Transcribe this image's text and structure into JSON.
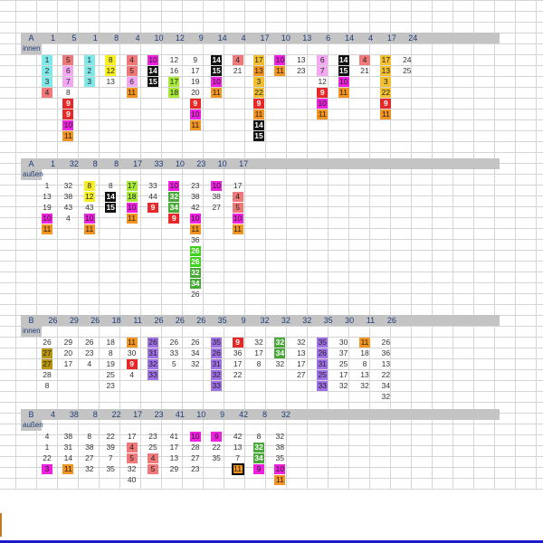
{
  "colors": {
    "1": "#7fe9e9",
    "2": "#7fe9e9",
    "3": "#7fe9e9",
    "4": "#f07878",
    "5": "#f07878",
    "6": "#f4a8f4",
    "7": "#f4a8f4",
    "8": "#f8f020",
    "12": "#f8f020",
    "9": "#e82828",
    "10": "#f020e0",
    "11": "#f49420",
    "14": "#111111",
    "15": "#111111",
    "17": "#a8e838",
    "18": "#a8e838",
    "22": "#f4c030",
    "26": "#40d020",
    "27": "#b8960c",
    "31": "#a070e8",
    "33": "#a070e8",
    "35": "#a070e8",
    "32": "#48a838",
    "34": "#48a838"
  },
  "sections": [
    {
      "title": "A",
      "subtitle": "innen",
      "headers": [
        "1",
        "5",
        "1",
        "8",
        "4",
        "10",
        "12",
        "9",
        "14",
        "4",
        "17",
        "10",
        "13",
        "6",
        "14",
        "4",
        "17",
        "24"
      ],
      "columns": [
        [
          {
            "v": "1",
            "c": "1"
          },
          {
            "v": "2",
            "c": "2"
          },
          {
            "v": "3",
            "c": "3"
          },
          {
            "v": "4",
            "c": "4"
          }
        ],
        [
          {
            "v": "5",
            "c": "5"
          },
          {
            "v": "6",
            "c": "6"
          },
          {
            "v": "7",
            "c": "7"
          },
          {
            "v": "8"
          },
          {
            "v": "9",
            "c": "9"
          },
          {
            "v": "9",
            "c": "9"
          },
          {
            "v": "10",
            "c": "10"
          },
          {
            "v": "11",
            "c": "11"
          }
        ],
        [
          {
            "v": "1",
            "c": "1"
          },
          {
            "v": "2",
            "c": "2"
          },
          {
            "v": "3",
            "c": "3"
          }
        ],
        [
          {
            "v": "8",
            "c": "8"
          },
          {
            "v": "12",
            "c": "12"
          },
          {
            "v": "13"
          }
        ],
        [
          {
            "v": "4",
            "c": "4"
          },
          {
            "v": "5",
            "c": "5"
          },
          {
            "v": "6",
            "c": "6"
          },
          {
            "v": "11",
            "c": "11"
          }
        ],
        [
          {
            "v": "10",
            "c": "10"
          },
          {
            "v": "14",
            "c": "14"
          },
          {
            "v": "15",
            "c": "15"
          }
        ],
        [
          {
            "v": "12"
          },
          {
            "v": "16"
          },
          {
            "v": "17",
            "c": "17"
          },
          {
            "v": "18",
            "c": "18"
          }
        ],
        [
          {
            "v": "9"
          },
          {
            "v": "17"
          },
          {
            "v": "19"
          },
          {
            "v": "20"
          },
          {
            "v": "9",
            "c": "9"
          },
          {
            "v": "10",
            "c": "10"
          },
          {
            "v": "11",
            "c": "11"
          }
        ],
        [
          {
            "v": "14",
            "c": "14"
          },
          {
            "v": "15",
            "c": "15"
          },
          {
            "v": "10",
            "c": "10"
          },
          {
            "v": "11",
            "c": "11"
          }
        ],
        [
          {
            "v": "4",
            "c": "4"
          },
          {
            "v": "21"
          }
        ],
        [
          {
            "v": "17",
            "c": "22"
          },
          {
            "v": "13",
            "c": "11"
          },
          {
            "v": "3",
            "c": "22"
          },
          {
            "v": "22",
            "c": "22"
          },
          {
            "v": "9",
            "c": "9"
          },
          {
            "v": "11",
            "c": "11"
          },
          {
            "v": "14",
            "c": "14"
          },
          {
            "v": "15",
            "c": "15"
          }
        ],
        [
          {
            "v": "10",
            "c": "10"
          },
          {
            "v": "11",
            "c": "11"
          }
        ],
        [
          {
            "v": "13"
          },
          {
            "v": "23"
          }
        ],
        [
          {
            "v": "6",
            "c": "6"
          },
          {
            "v": "7",
            "c": "6"
          },
          {
            "v": "12"
          },
          {
            "v": "9",
            "c": "9"
          },
          {
            "v": "10",
            "c": "10"
          },
          {
            "v": "11",
            "c": "11"
          }
        ],
        [
          {
            "v": "14",
            "c": "14"
          },
          {
            "v": "15",
            "c": "15"
          },
          {
            "v": "10",
            "c": "10"
          },
          {
            "v": "11",
            "c": "11"
          }
        ],
        [
          {
            "v": "4",
            "c": "4"
          },
          {
            "v": "21"
          }
        ],
        [
          {
            "v": "17",
            "c": "22"
          },
          {
            "v": "13",
            "c": "22"
          },
          {
            "v": "3",
            "c": "22"
          },
          {
            "v": "22",
            "c": "22"
          },
          {
            "v": "9",
            "c": "9"
          },
          {
            "v": "11",
            "c": "11"
          }
        ],
        [
          {
            "v": "24"
          },
          {
            "v": "25"
          }
        ]
      ]
    },
    {
      "title": "A",
      "subtitle": "außen",
      "headers": [
        "1",
        "32",
        "8",
        "8",
        "17",
        "33",
        "10",
        "23",
        "10",
        "17"
      ],
      "columns": [
        [
          {
            "v": "1"
          },
          {
            "v": "13"
          },
          {
            "v": "19"
          },
          {
            "v": "10",
            "c": "10"
          },
          {
            "v": "11",
            "c": "11"
          }
        ],
        [
          {
            "v": "32"
          },
          {
            "v": "38"
          },
          {
            "v": "43"
          },
          {
            "v": "4"
          }
        ],
        [
          {
            "v": "8",
            "c": "8"
          },
          {
            "v": "12",
            "c": "12"
          },
          {
            "v": "43"
          },
          {
            "v": "10",
            "c": "10"
          },
          {
            "v": "11",
            "c": "11"
          }
        ],
        [
          {
            "v": "8"
          },
          {
            "v": "14",
            "c": "14"
          },
          {
            "v": "15",
            "c": "15"
          }
        ],
        [
          {
            "v": "17",
            "c": "17"
          },
          {
            "v": "18",
            "c": "18"
          },
          {
            "v": "10",
            "c": "10"
          },
          {
            "v": "11",
            "c": "11"
          }
        ],
        [
          {
            "v": "33"
          },
          {
            "v": "44"
          },
          {
            "v": "9",
            "c": "9"
          }
        ],
        [
          {
            "v": "10",
            "c": "10"
          },
          {
            "v": "32",
            "c": "32"
          },
          {
            "v": "34",
            "c": "34"
          },
          {
            "v": "9",
            "c": "9"
          }
        ],
        [
          {
            "v": "23"
          },
          {
            "v": "38"
          },
          {
            "v": "42"
          },
          {
            "v": "10",
            "c": "10"
          },
          {
            "v": "11",
            "c": "11"
          },
          {
            "v": "36"
          },
          {
            "v": "26",
            "c": "26"
          },
          {
            "v": "26",
            "c": "26"
          },
          {
            "v": "32",
            "c": "32"
          },
          {
            "v": "34",
            "c": "34"
          },
          {
            "v": "26"
          }
        ],
        [
          {
            "v": "10",
            "c": "10"
          },
          {
            "v": "38"
          },
          {
            "v": "27"
          }
        ],
        [
          {
            "v": "17"
          },
          {
            "v": "4",
            "c": "4"
          },
          {
            "v": "5",
            "c": "5"
          },
          {
            "v": "10",
            "c": "10"
          },
          {
            "v": "11",
            "c": "11"
          }
        ]
      ]
    },
    {
      "title": "B",
      "subtitle": "innen",
      "headers": [
        "26",
        "29",
        "26",
        "18",
        "11",
        "26",
        "26",
        "26",
        "35",
        "9",
        "32",
        "32",
        "32",
        "35",
        "30",
        "11",
        "26"
      ],
      "columns": [
        [
          {
            "v": "26"
          },
          {
            "v": "27",
            "c": "27"
          },
          {
            "v": "27",
            "c": "27"
          },
          {
            "v": "28"
          },
          {
            "v": "8"
          }
        ],
        [
          {
            "v": "29"
          },
          {
            "v": "20"
          },
          {
            "v": "17"
          }
        ],
        [
          {
            "v": "26"
          },
          {
            "v": "23"
          },
          {
            "v": "4"
          }
        ],
        [
          {
            "v": "18"
          },
          {
            "v": "8"
          },
          {
            "v": "19"
          },
          {
            "v": "25"
          },
          {
            "v": "23"
          }
        ],
        [
          {
            "v": "11",
            "c": "11"
          },
          {
            "v": "30"
          },
          {
            "v": "9",
            "c": "9"
          },
          {
            "v": "4"
          }
        ],
        [
          {
            "v": "26",
            "c": "31"
          },
          {
            "v": "31",
            "c": "31"
          },
          {
            "v": "32",
            "c": "31"
          },
          {
            "v": "33",
            "c": "33"
          }
        ],
        [
          {
            "v": "26"
          },
          {
            "v": "33"
          },
          {
            "v": "5"
          }
        ],
        [
          {
            "v": "26"
          },
          {
            "v": "34"
          },
          {
            "v": "32"
          }
        ],
        [
          {
            "v": "35",
            "c": "35"
          },
          {
            "v": "26",
            "c": "35"
          },
          {
            "v": "31",
            "c": "31"
          },
          {
            "v": "32",
            "c": "31"
          },
          {
            "v": "33",
            "c": "33"
          }
        ],
        [
          {
            "v": "9",
            "c": "9"
          },
          {
            "v": "36"
          },
          {
            "v": "17"
          },
          {
            "v": "22"
          }
        ],
        [
          {
            "v": "32"
          },
          {
            "v": "17"
          },
          {
            "v": "8"
          }
        ],
        [
          {
            "v": "32",
            "c": "32"
          },
          {
            "v": "34",
            "c": "34"
          },
          {
            "v": "32"
          }
        ],
        [
          {
            "v": "32"
          },
          {
            "v": "13"
          },
          {
            "v": "17"
          },
          {
            "v": "27"
          }
        ],
        [
          {
            "v": "35",
            "c": "35"
          },
          {
            "v": "26",
            "c": "35"
          },
          {
            "v": "31",
            "c": "31"
          },
          {
            "v": "25",
            "c": "31"
          },
          {
            "v": "33",
            "c": "33"
          }
        ],
        [
          {
            "v": "30"
          },
          {
            "v": "37"
          },
          {
            "v": "25"
          },
          {
            "v": "17"
          },
          {
            "v": "32"
          }
        ],
        [
          {
            "v": "11",
            "c": "11"
          },
          {
            "v": "18"
          },
          {
            "v": "8"
          },
          {
            "v": "13"
          },
          {
            "v": "32"
          }
        ],
        [
          {
            "v": "26"
          },
          {
            "v": "36"
          },
          {
            "v": "13"
          },
          {
            "v": "22"
          },
          {
            "v": "34"
          },
          {
            "v": "32"
          }
        ]
      ]
    },
    {
      "title": "B",
      "subtitle": "außen",
      "headers": [
        "4",
        "38",
        "8",
        "22",
        "17",
        "23",
        "41",
        "10",
        "9",
        "42",
        "8",
        "32"
      ],
      "columns": [
        [
          {
            "v": "4"
          },
          {
            "v": "1"
          },
          {
            "v": "22"
          },
          {
            "v": "3",
            "c": "10"
          }
        ],
        [
          {
            "v": "38"
          },
          {
            "v": "31"
          },
          {
            "v": "14"
          },
          {
            "v": "11",
            "c": "11"
          }
        ],
        [
          {
            "v": "8"
          },
          {
            "v": "38"
          },
          {
            "v": "27"
          },
          {
            "v": "32"
          }
        ],
        [
          {
            "v": "22"
          },
          {
            "v": "39"
          },
          {
            "v": "7"
          },
          {
            "v": "35"
          }
        ],
        [
          {
            "v": "17"
          },
          {
            "v": "4",
            "c": "4"
          },
          {
            "v": "5",
            "c": "5"
          },
          {
            "v": "32"
          },
          {
            "v": "40"
          }
        ],
        [
          {
            "v": "23"
          },
          {
            "v": "25"
          },
          {
            "v": "4",
            "c": "4"
          },
          {
            "v": "5",
            "c": "5"
          }
        ],
        [
          {
            "v": "41"
          },
          {
            "v": "17"
          },
          {
            "v": "13"
          },
          {
            "v": "29"
          }
        ],
        [
          {
            "v": "10",
            "c": "10"
          },
          {
            "v": "28"
          },
          {
            "v": "27"
          },
          {
            "v": "23"
          }
        ],
        [
          {
            "v": "9",
            "c": "10"
          },
          {
            "v": "22"
          },
          {
            "v": "35"
          }
        ],
        [
          {
            "v": "42"
          },
          {
            "v": "13"
          },
          {
            "v": "7"
          },
          {
            "v": "11",
            "c": "11",
            "outlined": true
          }
        ],
        [
          {
            "v": "8"
          },
          {
            "v": "32",
            "c": "32"
          },
          {
            "v": "34",
            "c": "34"
          },
          {
            "v": "9",
            "c": "10"
          }
        ],
        [
          {
            "v": "32"
          },
          {
            "v": "38"
          },
          {
            "v": "35"
          },
          {
            "v": "10",
            "c": "10"
          },
          {
            "v": "11",
            "c": "11"
          }
        ]
      ]
    }
  ]
}
